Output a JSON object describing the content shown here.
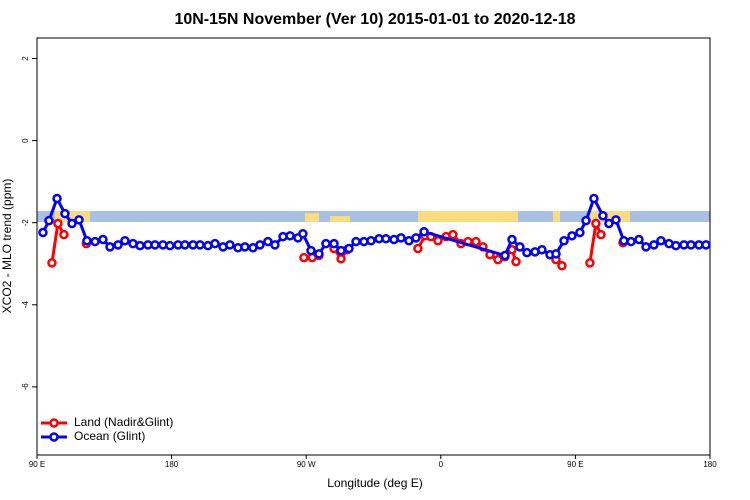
{
  "chart_data": {
    "type": "line",
    "title": "10N-15N November (Ver 10)   2015-01-01 to 2020-12-18",
    "xlabel": "Longitude (deg E)",
    "ylabel": "XCO2 - MLO trend (ppm)",
    "xlim": [
      90,
      540
    ],
    "ylim": [
      -7.66,
      2.5
    ],
    "xticks": [
      {
        "value": 90,
        "label": "90 E"
      },
      180,
      {
        "value": 270,
        "label": "90 W"
      },
      {
        "value": 360,
        "label": "0"
      },
      {
        "value": 450,
        "label": "90 E"
      },
      {
        "value": 540,
        "label": "180"
      }
    ],
    "yticks": [
      -6,
      -4,
      -2,
      0,
      2
    ],
    "legend": "bottom-left",
    "series": [
      {
        "name": "Land (Nadir&Glint)",
        "color": "#ff0000",
        "x": [
          100,
          104,
          108,
          null,
          123,
          null,
          268.5,
          274,
          278.5,
          null,
          288.6,
          293.3,
          297.3,
          null,
          344.7,
          349.4,
          353.4,
          358.1,
          363.5,
          368.1,
          373.5,
          378.2,
          383.5,
          388.2,
          392.9,
          398.2,
          402.9,
          407.6,
          410.3,
          null,
          437,
          441,
          null,
          459.7,
          463.7,
          467.1,
          null,
          481.8
        ],
        "values": [
          -2.98,
          -2.02,
          -2.29,
          null,
          -2.51,
          null,
          -2.85,
          -2.85,
          -2.8,
          null,
          -2.63,
          -2.88,
          -2.66,
          null,
          -2.63,
          -2.32,
          -2.34,
          -2.44,
          -2.34,
          -2.29,
          -2.51,
          -2.46,
          -2.46,
          -2.59,
          -2.78,
          -2.9,
          -2.83,
          -2.66,
          -2.95,
          null,
          -2.9,
          -3.05,
          null,
          -2.98,
          -2.02,
          -2.29,
          null,
          -2.49
        ]
      },
      {
        "name": "Ocean (Glint)",
        "color": "#0000ff",
        "x": [
          94,
          98,
          103.4,
          108.7,
          113.4,
          118.1,
          123.4,
          128.8,
          134.1,
          138.8,
          144.2,
          148.8,
          154.2,
          158.9,
          164.2,
          168.9,
          174.2,
          178.9,
          184.3,
          188.9,
          194.3,
          199,
          204.3,
          209,
          214.4,
          219,
          224.4,
          229,
          234.4,
          239.1,
          244.4,
          249.1,
          254.5,
          259.2,
          264.5,
          267.8,
          273.2,
          278.5,
          283.2,
          288.6,
          293.3,
          298.6,
          303.3,
          308.6,
          313.3,
          318.7,
          323.3,
          328.7,
          333.4,
          338.7,
          343.4,
          348.8,
          402.9,
          407.6,
          412.9,
          417.6,
          423,
          427.6,
          433,
          437,
          442.4,
          447.7,
          453,
          457.1,
          462.4,
          468.4,
          472.4,
          477.1,
          482.4,
          487.2,
          492.5,
          497.2,
          502.5,
          507.2,
          512.6,
          517.2,
          522.6,
          527.3,
          532.6,
          537.3
        ],
        "values": [
          -2.24,
          -1.95,
          -1.41,
          -1.78,
          -2.02,
          -1.93,
          -2.44,
          -2.46,
          -2.41,
          -2.59,
          -2.54,
          -2.44,
          -2.51,
          -2.56,
          -2.54,
          -2.54,
          -2.54,
          -2.56,
          -2.54,
          -2.54,
          -2.54,
          -2.54,
          -2.56,
          -2.51,
          -2.59,
          -2.54,
          -2.61,
          -2.59,
          -2.61,
          -2.54,
          -2.46,
          -2.54,
          -2.34,
          -2.32,
          -2.37,
          -2.27,
          -2.68,
          -2.76,
          -2.51,
          -2.51,
          -2.68,
          -2.63,
          -2.46,
          -2.46,
          -2.44,
          -2.39,
          -2.39,
          -2.41,
          -2.37,
          -2.44,
          -2.37,
          -2.22,
          -2.8,
          -2.41,
          -2.59,
          -2.73,
          -2.71,
          -2.66,
          -2.78,
          -2.76,
          -2.44,
          -2.32,
          -2.24,
          -1.95,
          -1.41,
          -1.83,
          -2.02,
          -1.93,
          -2.44,
          -2.46,
          -2.41,
          -2.59,
          -2.54,
          -2.44,
          -2.51,
          -2.56,
          -2.54,
          -2.54,
          -2.54,
          -2.54
        ]
      }
    ]
  }
}
